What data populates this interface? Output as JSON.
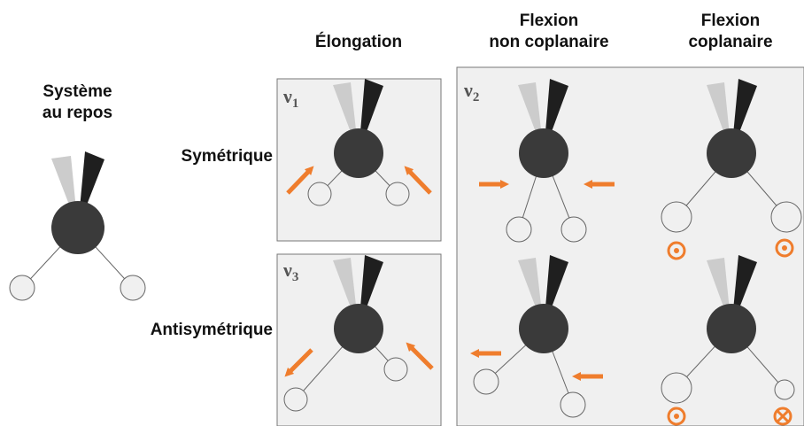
{
  "headers": {
    "elongation": "Élongation",
    "flexion_non_coplanaire": [
      "Flexion",
      "non coplanaire"
    ],
    "flexion_coplanaire": [
      "Flexion",
      "coplanaire"
    ]
  },
  "rest": {
    "label": [
      "Système",
      "au repos"
    ]
  },
  "rows": {
    "symmetric": "Symétrique",
    "antisymmetric": "Antisymétrique"
  },
  "modes": {
    "v1": "ν",
    "v1_sub": "1",
    "v2": "ν",
    "v2_sub": "2",
    "v3": "ν",
    "v3_sub": "3"
  },
  "colors": {
    "atom": "#3a3a3a",
    "panel": "#f0f0f0",
    "arrow": "#ef7d2d",
    "lone_light": "#cccccc",
    "lone_dark": "#1f1f1f"
  }
}
